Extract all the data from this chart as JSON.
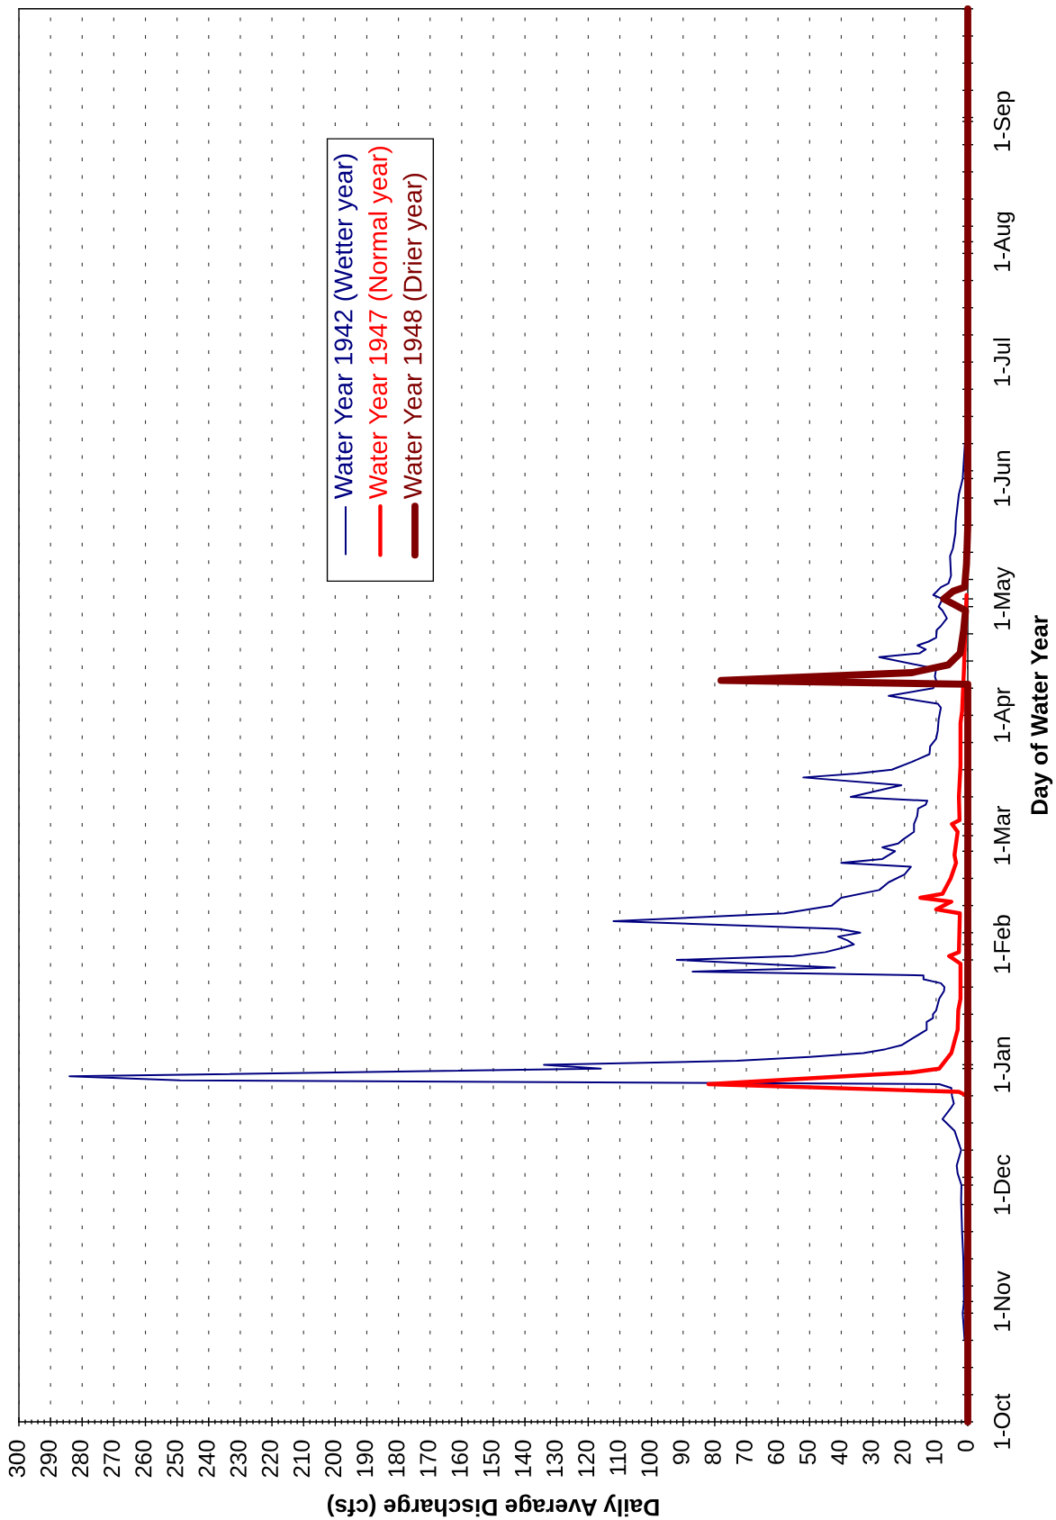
{
  "chart_data": {
    "type": "line",
    "orientation": "horizontal",
    "xlabel": "Daily Average Discharge (cfs)",
    "ylabel": "Day of Water Year",
    "xlim": [
      300,
      0
    ],
    "xticks": [
      0,
      {
        "value": 2,
        "label": null
      },
      {
        "value": 4,
        "label": null
      },
      {
        "value": 6,
        "label": null
      },
      {
        "value": 8,
        "label": null
      },
      10,
      {
        "value": 12,
        "label": null
      },
      {
        "value": 14,
        "label": null
      },
      {
        "value": 16,
        "label": null
      },
      {
        "value": 18,
        "label": null
      },
      20,
      {
        "value": 22,
        "label": null
      },
      {
        "value": 24,
        "label": null
      },
      {
        "value": 26,
        "label": null
      },
      {
        "value": 28,
        "label": null
      },
      30,
      {
        "value": 32,
        "label": null
      },
      {
        "value": 34,
        "label": null
      },
      {
        "value": 36,
        "label": null
      },
      {
        "value": 38,
        "label": null
      },
      40,
      {
        "value": 42,
        "label": null
      },
      {
        "value": 44,
        "label": null
      },
      {
        "value": 46,
        "label": null
      },
      {
        "value": 48,
        "label": null
      },
      50,
      {
        "value": 52,
        "label": null
      },
      {
        "value": 54,
        "label": null
      },
      {
        "value": 56,
        "label": null
      },
      {
        "value": 58,
        "label": null
      },
      60,
      {
        "value": 62,
        "label": null
      },
      {
        "value": 64,
        "label": null
      },
      {
        "value": 66,
        "label": null
      },
      {
        "value": 68,
        "label": null
      },
      70,
      {
        "value": 72,
        "label": null
      },
      {
        "value": 74,
        "label": null
      },
      {
        "value": 76,
        "label": null
      },
      {
        "value": 78,
        "label": null
      },
      80,
      {
        "value": 82,
        "label": null
      },
      {
        "value": 84,
        "label": null
      },
      {
        "value": 86,
        "label": null
      },
      {
        "value": 88,
        "label": null
      },
      90,
      {
        "value": 92,
        "label": null
      },
      {
        "value": 94,
        "label": null
      },
      {
        "value": 96,
        "label": null
      },
      {
        "value": 98,
        "label": null
      },
      100,
      {
        "value": 102,
        "label": null
      },
      {
        "value": 104,
        "label": null
      },
      {
        "value": 106,
        "label": null
      },
      {
        "value": 108,
        "label": null
      },
      110,
      {
        "value": 112,
        "label": null
      },
      {
        "value": 114,
        "label": null
      },
      {
        "value": 116,
        "label": null
      },
      {
        "value": 118,
        "label": null
      },
      120,
      {
        "value": 122,
        "label": null
      },
      {
        "value": 124,
        "label": null
      },
      {
        "value": 126,
        "label": null
      },
      {
        "value": 128,
        "label": null
      },
      130,
      {
        "value": 132,
        "label": null
      },
      {
        "value": 134,
        "label": null
      },
      {
        "value": 136,
        "label": null
      },
      {
        "value": 138,
        "label": null
      },
      140,
      {
        "value": 142,
        "label": null
      },
      {
        "value": 144,
        "label": null
      },
      {
        "value": 146,
        "label": null
      },
      {
        "value": 148,
        "label": null
      },
      150,
      {
        "value": 152,
        "label": null
      },
      {
        "value": 154,
        "label": null
      },
      {
        "value": 156,
        "label": null
      },
      {
        "value": 158,
        "label": null
      },
      160,
      {
        "value": 162,
        "label": null
      },
      {
        "value": 164,
        "label": null
      },
      {
        "value": 166,
        "label": null
      },
      {
        "value": 168,
        "label": null
      },
      170,
      {
        "value": 172,
        "label": null
      },
      {
        "value": 174,
        "label": null
      },
      {
        "value": 176,
        "label": null
      },
      {
        "value": 178,
        "label": null
      },
      180,
      {
        "value": 182,
        "label": null
      },
      {
        "value": 184,
        "label": null
      },
      {
        "value": 186,
        "label": null
      },
      {
        "value": 188,
        "label": null
      },
      190,
      {
        "value": 192,
        "label": null
      },
      {
        "value": 194,
        "label": null
      },
      {
        "value": 196,
        "label": null
      },
      {
        "value": 198,
        "label": null
      },
      200,
      {
        "value": 202,
        "label": null
      },
      {
        "value": 204,
        "label": null
      },
      {
        "value": 206,
        "label": null
      },
      {
        "value": 208,
        "label": null
      },
      210,
      {
        "value": 212,
        "label": null
      },
      {
        "value": 214,
        "label": null
      },
      {
        "value": 216,
        "label": null
      },
      {
        "value": 218,
        "label": null
      },
      220,
      {
        "value": 222,
        "label": null
      },
      {
        "value": 224,
        "label": null
      },
      {
        "value": 226,
        "label": null
      },
      {
        "value": 228,
        "label": null
      },
      230,
      {
        "value": 232,
        "label": null
      },
      {
        "value": 234,
        "label": null
      },
      {
        "value": 236,
        "label": null
      },
      {
        "value": 238,
        "label": null
      },
      240,
      {
        "value": 242,
        "label": null
      },
      {
        "value": 244,
        "label": null
      },
      {
        "value": 246,
        "label": null
      },
      {
        "value": 248,
        "label": null
      },
      250,
      {
        "value": 252,
        "label": null
      },
      {
        "value": 254,
        "label": null
      },
      {
        "value": 256,
        "label": null
      },
      {
        "value": 258,
        "label": null
      },
      260,
      {
        "value": 262,
        "label": null
      },
      {
        "value": 264,
        "label": null
      },
      {
        "value": 266,
        "label": null
      },
      {
        "value": 268,
        "label": null
      },
      270,
      {
        "value": 272,
        "label": null
      },
      {
        "value": 274,
        "label": null
      },
      {
        "value": 276,
        "label": null
      },
      {
        "value": 278,
        "label": null
      },
      280,
      {
        "value": 282,
        "label": null
      },
      {
        "value": 284,
        "label": null
      },
      {
        "value": 286,
        "label": null
      },
      {
        "value": 288,
        "label": null
      },
      290,
      {
        "value": 292,
        "label": null
      },
      {
        "value": 294,
        "label": null
      },
      {
        "value": 296,
        "label": null
      },
      {
        "value": 298,
        "label": null
      },
      300
    ],
    "ylim": [
      "1941-10-01",
      "1942-09-30"
    ],
    "yticks": [
      {
        "value": "1941-10-01",
        "label": "1-Oct"
      },
      {
        "value": "1941-10-08",
        "label": null
      },
      {
        "value": "1941-10-15",
        "label": null
      },
      {
        "value": "1941-10-22",
        "label": null
      },
      {
        "value": "1941-10-29",
        "label": null
      },
      {
        "value": "1941-11-01",
        "label": "1-Nov"
      },
      {
        "value": "1941-11-05",
        "label": null
      },
      {
        "value": "1941-11-12",
        "label": null
      },
      {
        "value": "1941-11-19",
        "label": null
      },
      {
        "value": "1941-11-26",
        "label": null
      },
      {
        "value": "1941-12-01",
        "label": "1-Dec"
      },
      {
        "value": "1941-12-03",
        "label": null
      },
      {
        "value": "1941-12-10",
        "label": null
      },
      {
        "value": "1941-12-17",
        "label": null
      },
      {
        "value": "1941-12-24",
        "label": null
      },
      {
        "value": "1941-12-31",
        "label": null
      },
      {
        "value": "1942-01-01",
        "label": "1-Jan"
      },
      {
        "value": "1942-01-07",
        "label": null
      },
      {
        "value": "1942-01-14",
        "label": null
      },
      {
        "value": "1942-01-21",
        "label": null
      },
      {
        "value": "1942-01-28",
        "label": null
      },
      {
        "value": "1942-02-01",
        "label": "1-Feb"
      },
      {
        "value": "1942-02-04",
        "label": null
      },
      {
        "value": "1942-02-11",
        "label": null
      },
      {
        "value": "1942-02-18",
        "label": null
      },
      {
        "value": "1942-02-25",
        "label": null
      },
      {
        "value": "1942-03-01",
        "label": "1-Mar"
      },
      {
        "value": "1942-03-04",
        "label": null
      },
      {
        "value": "1942-03-11",
        "label": null
      },
      {
        "value": "1942-03-18",
        "label": null
      },
      {
        "value": "1942-03-25",
        "label": null
      },
      {
        "value": "1942-04-01",
        "label": "1-Apr"
      },
      {
        "value": "1942-04-08",
        "label": null
      },
      {
        "value": "1942-04-15",
        "label": null
      },
      {
        "value": "1942-04-22",
        "label": null
      },
      {
        "value": "1942-04-29",
        "label": null
      },
      {
        "value": "1942-05-01",
        "label": "1-May"
      },
      {
        "value": "1942-05-06",
        "label": null
      },
      {
        "value": "1942-05-13",
        "label": null
      },
      {
        "value": "1942-05-20",
        "label": null
      },
      {
        "value": "1942-05-27",
        "label": null
      },
      {
        "value": "1942-06-01",
        "label": "1-Jun"
      },
      {
        "value": "1942-06-03",
        "label": null
      },
      {
        "value": "1942-06-10",
        "label": null
      },
      {
        "value": "1942-06-17",
        "label": null
      },
      {
        "value": "1942-06-24",
        "label": null
      },
      {
        "value": "1942-07-01",
        "label": "1-Jul"
      },
      {
        "value": "1942-07-08",
        "label": null
      },
      {
        "value": "1942-07-15",
        "label": null
      },
      {
        "value": "1942-07-22",
        "label": null
      },
      {
        "value": "1942-07-29",
        "label": null
      },
      {
        "value": "1942-08-01",
        "label": "1-Aug"
      },
      {
        "value": "1942-08-05",
        "label": null
      },
      {
        "value": "1942-08-12",
        "label": null
      },
      {
        "value": "1942-08-19",
        "label": null
      },
      {
        "value": "1942-08-26",
        "label": null
      },
      {
        "value": "1942-09-01",
        "label": "1-Sep"
      },
      {
        "value": "1942-09-02",
        "label": null
      },
      {
        "value": "1942-09-09",
        "label": null
      },
      {
        "value": "1942-09-16",
        "label": null
      },
      {
        "value": "1942-09-23",
        "label": null
      },
      {
        "value": "1942-09-30",
        "label": null
      }
    ],
    "grid": "x",
    "legend": "top left",
    "series": [
      {
        "name": "Water Year 1942 (Wetter year)",
        "color": "#000080",
        "x": [
          "1941-10-22",
          "1941-10-29",
          "1941-11-01",
          "1941-11-12",
          "1941-11-19",
          "1941-11-27",
          "1941-12-01",
          "1941-12-04",
          "1941-12-06",
          "1941-12-10",
          "1941-12-15",
          "1941-12-18",
          "1941-12-21",
          "1941-12-22",
          "1941-12-24",
          "1941-12-26",
          "1941-12-27",
          "1941-12-28",
          "1941-12-29",
          "1941-12-31",
          "1942-01-01",
          "1942-01-02",
          "1942-01-03",
          "1942-01-04",
          "1942-01-05",
          "1942-01-06",
          "1942-01-08",
          "1942-01-10",
          "1942-01-12",
          "1942-01-13",
          "1942-01-14",
          "1942-01-15",
          "1942-01-18",
          "1942-01-20",
          "1942-01-21",
          "1942-01-22",
          "1942-01-23",
          "1942-01-24",
          "1942-01-25",
          "1942-01-26",
          "1942-01-28",
          "1942-01-29",
          "1942-01-30",
          "1942-01-31",
          "1942-02-01",
          "1942-02-02",
          "1942-02-03",
          "1942-02-04",
          "1942-02-05",
          "1942-02-07",
          "1942-02-09",
          "1942-02-11",
          "1942-02-13",
          "1942-02-15",
          "1942-02-17",
          "1942-02-19",
          "1942-02-21",
          "1942-02-22",
          "1942-02-23",
          "1942-02-25",
          "1942-02-26",
          "1942-02-27",
          "1942-02-28",
          "1942-03-02",
          "1942-03-04",
          "1942-03-06",
          "1942-03-08",
          "1942-03-09",
          "1942-03-10",
          "1942-03-11",
          "1942-03-14",
          "1942-03-16",
          "1942-03-17",
          "1942-03-18",
          "1942-03-20",
          "1942-03-22",
          "1942-03-24",
          "1942-03-26",
          "1942-03-28",
          "1942-03-31",
          "1942-04-03",
          "1942-04-04",
          "1942-04-06",
          "1942-04-08",
          "1942-04-10",
          "1942-04-11",
          "1942-04-13",
          "1942-04-16",
          "1942-04-17",
          "1942-04-18",
          "1942-04-19",
          "1942-04-20",
          "1942-04-21",
          "1942-04-23",
          "1942-04-24",
          "1942-04-26",
          "1942-04-28",
          "1942-04-29",
          "1942-05-01",
          "1942-05-02",
          "1942-05-04",
          "1942-05-05",
          "1942-05-07",
          "1942-05-12",
          "1942-05-14",
          "1942-05-18",
          "1942-05-21",
          "1942-05-28",
          "1942-06-01",
          "1942-06-10"
        ],
        "values": [
          1.0,
          1.6,
          1.2,
          1.4,
          1.8,
          2.1,
          2.0,
          3.2,
          3.5,
          2.1,
          4.2,
          8.0,
          5.2,
          4.4,
          5.0,
          5.2,
          9.0,
          249,
          284,
          116,
          134,
          73,
          50,
          33,
          26,
          21,
          17,
          13,
          13,
          11,
          11,
          10,
          9,
          7.5,
          7.4,
          8.5,
          14,
          14,
          87,
          42,
          92,
          55,
          45,
          40,
          36,
          38,
          41,
          34,
          41,
          112,
          58,
          43,
          40,
          28,
          25,
          20,
          18,
          40,
          27,
          23,
          27,
          22,
          20.5,
          17,
          17,
          16,
          15.7,
          13.3,
          12.8,
          37,
          21,
          52,
          35,
          24,
          17.7,
          12.1,
          11.9,
          10,
          9.5,
          9.2,
          8.5,
          9.5,
          25,
          10.9,
          10,
          10.4,
          10,
          28,
          15.2,
          13.3,
          15.9,
          12.4,
          10,
          9.8,
          8.5,
          6.6,
          8,
          9.2,
          8,
          10.9,
          8.5,
          6.1,
          5.3,
          5.6,
          4.7,
          3.9,
          3.8,
          2.8,
          1.6,
          0.9
        ]
      },
      {
        "name": "Water Year 1947 (Normal year)",
        "color": "#ff0000",
        "x": [
          "1941-12-24",
          "1941-12-25",
          "1941-12-27",
          "1941-12-30",
          "1941-12-31",
          "1942-01-04",
          "1942-01-07",
          "1942-01-10",
          "1942-01-15",
          "1942-01-18",
          "1942-01-27",
          "1942-01-29",
          "1942-01-30",
          "1942-02-09",
          "1942-02-10",
          "1942-02-12",
          "1942-02-13",
          "1942-02-14",
          "1942-02-18",
          "1942-02-22",
          "1942-02-24",
          "1942-03-02",
          "1942-03-04",
          "1942-03-05",
          "1942-03-11",
          "1942-03-19",
          "1942-03-30",
          "1942-04-02",
          "1942-04-13",
          "1942-04-23",
          "1942-05-02"
        ],
        "values": [
          0.3,
          2.8,
          82,
          18,
          9,
          5.2,
          4.2,
          3.2,
          3.0,
          2.3,
          2.3,
          5.9,
          2.8,
          2.5,
          10,
          5.2,
          15,
          8,
          5.4,
          3.7,
          4.2,
          3.2,
          5.0,
          2.6,
          2.8,
          2.3,
          2.3,
          1.8,
          1.2,
          0.8,
          0.4
        ]
      },
      {
        "name": "Water Year 1948 (Drier year)",
        "color": "#800000",
        "x": [
          "1941-10-01",
          "1942-04-09",
          "1942-04-10",
          "1942-04-12",
          "1942-04-14",
          "1942-04-17",
          "1942-04-23",
          "1942-04-28",
          "1942-05-01",
          "1942-05-03",
          "1942-05-04",
          "1942-05-10",
          "1942-05-20",
          "1942-09-30"
        ],
        "values": [
          0,
          0,
          78,
          17.6,
          6.2,
          2.4,
          1.3,
          0.7,
          7.6,
          4.6,
          1.0,
          0.4,
          0,
          0
        ]
      }
    ]
  }
}
